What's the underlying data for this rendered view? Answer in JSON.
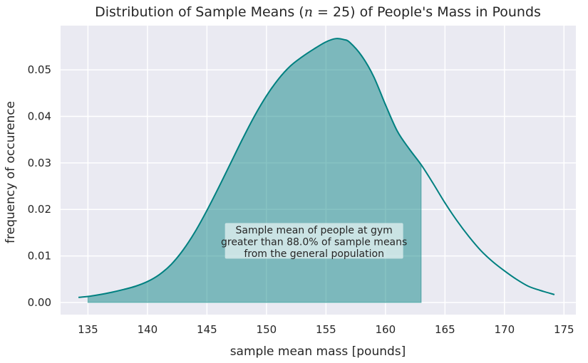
{
  "chart_data": {
    "type": "area",
    "title_parts": {
      "before": "Distribution of Sample Means (",
      "n_symbol": "n",
      "equals": " = ",
      "n_value": "25",
      "after": ") of People's Mass in Pounds"
    },
    "xlabel": "sample mean mass [pounds]",
    "ylabel": "frequency of occurence",
    "xlim": [
      132.7,
      176.0
    ],
    "ylim": [
      -0.0026,
      0.0595
    ],
    "x_ticks": [
      135,
      140,
      145,
      150,
      155,
      160,
      165,
      170,
      175
    ],
    "y_ticks": [
      0.0,
      0.01,
      0.02,
      0.03,
      0.04,
      0.05
    ],
    "y_tick_labels": [
      "0.00",
      "0.01",
      "0.02",
      "0.03",
      "0.04",
      "0.05"
    ],
    "grid": true,
    "series": [
      {
        "color": "#008080",
        "x": [
          134.2,
          135,
          136,
          137,
          138,
          139,
          140,
          141,
          142,
          143,
          144,
          145,
          146,
          147,
          148,
          149,
          150,
          151,
          152,
          153,
          154,
          155,
          155.8,
          156.5,
          157,
          158,
          159,
          160,
          161,
          162,
          163,
          164,
          165,
          166,
          167,
          168,
          169,
          170,
          171,
          172,
          173,
          174.2
        ],
        "y": [
          0.0011,
          0.0013,
          0.0017,
          0.0022,
          0.0028,
          0.0035,
          0.0045,
          0.006,
          0.0082,
          0.0113,
          0.0152,
          0.0198,
          0.0248,
          0.03,
          0.0352,
          0.0401,
          0.0444,
          0.048,
          0.0508,
          0.0528,
          0.0545,
          0.056,
          0.0567,
          0.0565,
          0.0559,
          0.053,
          0.0486,
          0.0425,
          0.0368,
          0.033,
          0.0296,
          0.0256,
          0.0214,
          0.0176,
          0.0142,
          0.0112,
          0.0088,
          0.0068,
          0.005,
          0.0035,
          0.0026,
          0.0017
        ]
      }
    ],
    "shaded_region": {
      "x_from": 135.0,
      "x_to": 163.0,
      "color": "#008080"
    },
    "annotation": {
      "lines": [
        "Sample mean of people at gym",
        "greater than 88.0% of sample means",
        "from the general population"
      ],
      "x": 154.0,
      "y": 0.0131
    },
    "colors": {
      "plot_bg": "#eaeaf2",
      "grid": "#ffffff",
      "line": "#008080",
      "fill": "#008080"
    }
  }
}
